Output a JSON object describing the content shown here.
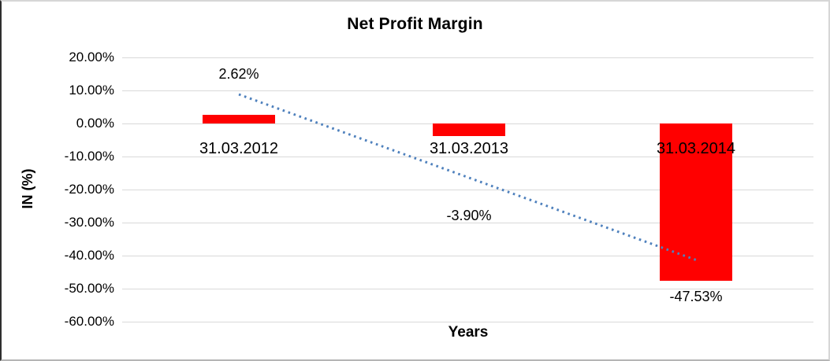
{
  "chart_data": {
    "type": "bar",
    "title": "Net Profit Margin",
    "categories": [
      "31.03.2012",
      "31.03.2013",
      "31.03.2014"
    ],
    "values": [
      2.62,
      -3.9,
      -47.53
    ],
    "data_labels": [
      "2.62%",
      "-3.90%",
      "-47.53%"
    ],
    "xlabel": "Years",
    "ylabel": "IN (%)",
    "ylim": [
      -60,
      20
    ],
    "y_tick_step": 10,
    "y_tick_labels": [
      "20.00%",
      "10.00%",
      "0.00%",
      "-10.00%",
      "-20.00%",
      "-30.00%",
      "-40.00%",
      "-50.00%",
      "-60.00%"
    ],
    "grid": true,
    "legend": "none",
    "bar_color": "#FF0000",
    "trendline": {
      "type": "linear",
      "style": "dotted",
      "color": "#4f81bd",
      "start_pct": 8.8,
      "end_pct": -41.3
    }
  },
  "colors": {
    "background": "#ffffff",
    "gridline": "#d9d9d9",
    "text": "#000000",
    "bar": "#FF0000",
    "trendline": "#4f81bd"
  }
}
